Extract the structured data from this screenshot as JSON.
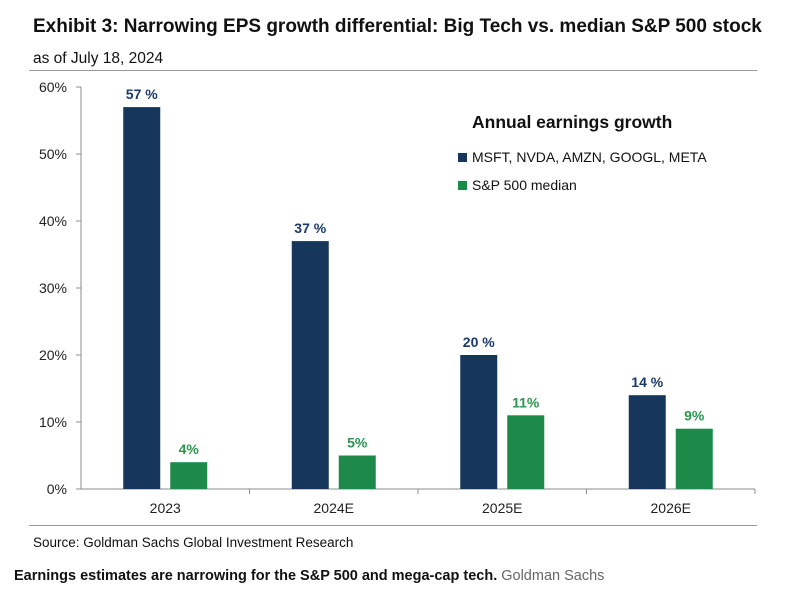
{
  "header": {
    "title": "Exhibit 3: Narrowing EPS growth differential: Big Tech vs. median S&P 500 stock",
    "subtitle": "as of July 18, 2024"
  },
  "footer": {
    "source": "Source: Goldman Sachs Global Investment Research",
    "caption": "Earnings estimates are narrowing for the S&P 500 and mega-cap tech.",
    "credit": "Goldman Sachs"
  },
  "chart_data": {
    "type": "bar",
    "title": "Exhibit 3: Narrowing EPS growth differential: Big Tech vs. median S&P 500 stock",
    "subtitle": "as of July 18, 2024",
    "legend_title": "Annual earnings growth",
    "legend_position": "top-right",
    "categories": [
      "2023",
      "2024E",
      "2025E",
      "2026E"
    ],
    "series": [
      {
        "name": "MSFT, NVDA, AMZN, GOOGL, META",
        "values": [
          57,
          37,
          20,
          14
        ],
        "labels": [
          "57 %",
          "37 %",
          "20 %",
          "14 %"
        ],
        "color": "#16365c"
      },
      {
        "name": "S&P 500 median",
        "values": [
          4,
          5,
          11,
          9
        ],
        "labels": [
          "4%",
          "5%",
          "11%",
          "9%"
        ],
        "color": "#1d8a4a"
      }
    ],
    "yticks": [
      "0%",
      "10%",
      "20%",
      "30%",
      "40%",
      "50%",
      "60%"
    ],
    "ylim": [
      0,
      60
    ],
    "grid": false,
    "label_colors": {
      "series_0": "#1b3a6b",
      "series_1": "#2a9650"
    }
  }
}
